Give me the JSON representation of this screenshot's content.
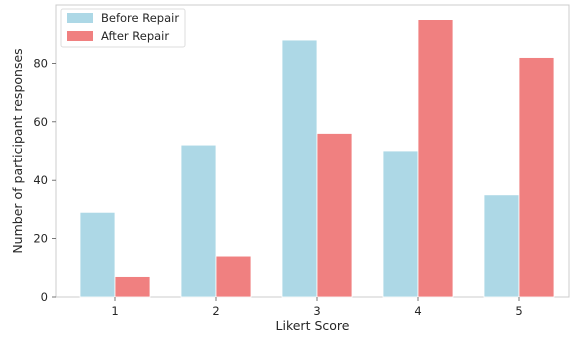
{
  "chart_data": {
    "type": "bar",
    "xlabel": "Likert Score",
    "ylabel": "Number of participant responses",
    "categories": [
      "1",
      "2",
      "3",
      "4",
      "5"
    ],
    "series": [
      {
        "name": "Before Repair",
        "color": "#add8e6",
        "values": [
          29,
          52,
          88,
          50,
          35
        ]
      },
      {
        "name": "After Repair",
        "color": "#f08080",
        "values": [
          7,
          14,
          56,
          95,
          82
        ]
      }
    ],
    "ylim": [
      0,
      100
    ],
    "yticks": [
      0,
      20,
      40,
      60,
      80
    ],
    "grid": false,
    "legend_position": "top-left"
  }
}
